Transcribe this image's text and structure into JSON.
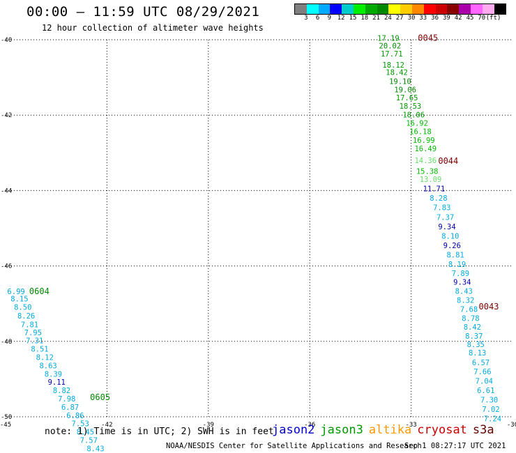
{
  "title": "00:00 – 11:59 UTC 08/29/2021",
  "subtitle": "12 hour collection of altimeter wave heights",
  "colorbar": {
    "colors": [
      "#7f7f7f",
      "#00ffff",
      "#00aaff",
      "#0000ff",
      "#00cccc",
      "#00ee00",
      "#00aa00",
      "#008800",
      "#ffff00",
      "#ffcc00",
      "#ff8800",
      "#ff0000",
      "#cc0000",
      "#880000",
      "#aa00aa",
      "#ff66ff",
      "#ffaaee",
      "#000000"
    ],
    "labels": [
      "3",
      "6",
      "9",
      "12",
      "15",
      "18",
      "21",
      "24",
      "27",
      "30",
      "33",
      "36",
      "39",
      "42",
      "45",
      "70",
      "(ft)"
    ]
  },
  "axes": {
    "lon_ticks": [
      "-45",
      "-42",
      "-39",
      "-36",
      "-33",
      "-30"
    ],
    "lat_ticks": [
      "-40",
      "-42",
      "-44",
      "-46",
      "-48",
      "-50"
    ]
  },
  "tracks": [
    {
      "id": "track-east-top",
      "labels": [
        {
          "text": "0045",
          "color": "#800000",
          "lon": -32.8,
          "lat": -39.95
        },
        {
          "text": "0044",
          "color": "#800000",
          "lon": -32.2,
          "lat": -43.22
        },
        {
          "text": "0043",
          "color": "#800000",
          "lon": -31.0,
          "lat": -47.08
        }
      ],
      "points": [
        {
          "v": "17.19",
          "c": "#009900",
          "lon": -34.0,
          "lat": -39.95
        },
        {
          "v": "20.02",
          "c": "#008800",
          "lon": -33.95,
          "lat": -40.16
        },
        {
          "v": "17.71",
          "c": "#009900",
          "lon": -33.9,
          "lat": -40.37
        },
        {
          "v": "18.12",
          "c": "#009900",
          "lon": -33.85,
          "lat": -40.67
        },
        {
          "v": "18.42",
          "c": "#009900",
          "lon": -33.75,
          "lat": -40.86
        },
        {
          "v": "19.10",
          "c": "#008800",
          "lon": -33.65,
          "lat": -41.1
        },
        {
          "v": "19.06",
          "c": "#008800",
          "lon": -33.5,
          "lat": -41.32
        },
        {
          "v": "17.65",
          "c": "#009900",
          "lon": -33.45,
          "lat": -41.53
        },
        {
          "v": "18.53",
          "c": "#009900",
          "lon": -33.35,
          "lat": -41.76
        },
        {
          "v": "18.06",
          "c": "#009900",
          "lon": -33.25,
          "lat": -41.99
        },
        {
          "v": "16.92",
          "c": "#00bb00",
          "lon": -33.15,
          "lat": -42.21
        },
        {
          "v": "16.18",
          "c": "#00bb00",
          "lon": -33.05,
          "lat": -42.43
        },
        {
          "v": "16.99",
          "c": "#00bb00",
          "lon": -32.95,
          "lat": -42.66
        },
        {
          "v": "16.49",
          "c": "#00bb00",
          "lon": -32.9,
          "lat": -42.88
        },
        {
          "v": "14.36",
          "c": "#66dd66",
          "lon": -32.9,
          "lat": -43.2
        },
        {
          "v": "15.38",
          "c": "#00bb00",
          "lon": -32.85,
          "lat": -43.48
        },
        {
          "v": "13.09",
          "c": "#66dd66",
          "lon": -32.75,
          "lat": -43.7
        },
        {
          "v": "11.71",
          "c": "#0000aa",
          "lon": -32.65,
          "lat": -43.95
        },
        {
          "v": "8.28",
          "c": "#00aadd",
          "lon": -32.45,
          "lat": -44.2
        },
        {
          "v": "7.83",
          "c": "#00aadd",
          "lon": -32.35,
          "lat": -44.45
        },
        {
          "v": "7.37",
          "c": "#00aadd",
          "lon": -32.25,
          "lat": -44.7
        },
        {
          "v": "9.34",
          "c": "#0000aa",
          "lon": -32.2,
          "lat": -44.95
        },
        {
          "v": "8.10",
          "c": "#00aadd",
          "lon": -32.1,
          "lat": -45.2
        },
        {
          "v": "9.26",
          "c": "#0000aa",
          "lon": -32.05,
          "lat": -45.45
        },
        {
          "v": "8.81",
          "c": "#00aadd",
          "lon": -31.95,
          "lat": -45.7
        },
        {
          "v": "8.19",
          "c": "#00aadd",
          "lon": -31.9,
          "lat": -45.95
        },
        {
          "v": "7.89",
          "c": "#00aadd",
          "lon": -31.8,
          "lat": -46.19
        },
        {
          "v": "9.34",
          "c": "#0000aa",
          "lon": -31.75,
          "lat": -46.42
        },
        {
          "v": "8.43",
          "c": "#00aadd",
          "lon": -31.7,
          "lat": -46.66
        },
        {
          "v": "8.32",
          "c": "#00aadd",
          "lon": -31.65,
          "lat": -46.9
        },
        {
          "v": "7.68",
          "c": "#00aadd",
          "lon": -31.55,
          "lat": -47.14
        },
        {
          "v": "8.78",
          "c": "#00aadd",
          "lon": -31.5,
          "lat": -47.38
        },
        {
          "v": "8.42",
          "c": "#00aadd",
          "lon": -31.45,
          "lat": -47.62
        },
        {
          "v": "8.37",
          "c": "#00aadd",
          "lon": -31.4,
          "lat": -47.86
        },
        {
          "v": "8.35",
          "c": "#00aadd",
          "lon": -31.35,
          "lat": -48.08
        },
        {
          "v": "8.13",
          "c": "#00aadd",
          "lon": -31.3,
          "lat": -48.3
        },
        {
          "v": "6.57",
          "c": "#00aadd",
          "lon": -31.2,
          "lat": -48.56
        },
        {
          "v": "7.66",
          "c": "#00aadd",
          "lon": -31.15,
          "lat": -48.8
        },
        {
          "v": "7.04",
          "c": "#00aadd",
          "lon": -31.1,
          "lat": -49.05
        },
        {
          "v": "6.61",
          "c": "#00aadd",
          "lon": -31.05,
          "lat": -49.3
        },
        {
          "v": "7.30",
          "c": "#00aadd",
          "lon": -30.95,
          "lat": -49.55
        },
        {
          "v": "7.02",
          "c": "#00aadd",
          "lon": -30.9,
          "lat": -49.8
        },
        {
          "v": "7.24",
          "c": "#00aadd",
          "lon": -30.85,
          "lat": -50.05
        }
      ]
    },
    {
      "id": "track-west",
      "labels": [
        {
          "text": "0604",
          "color": "#008800",
          "lon": -44.3,
          "lat": -46.67
        },
        {
          "text": "0605",
          "color": "#008800",
          "lon": -42.5,
          "lat": -49.48
        }
      ],
      "points": [
        {
          "v": "6.99",
          "c": "#00aadd",
          "lon": -44.95,
          "lat": -46.67
        },
        {
          "v": "8.15",
          "c": "#00aadd",
          "lon": -44.85,
          "lat": -46.87
        },
        {
          "v": "8.50",
          "c": "#00aadd",
          "lon": -44.75,
          "lat": -47.09
        },
        {
          "v": "8.26",
          "c": "#00aadd",
          "lon": -44.65,
          "lat": -47.32
        },
        {
          "v": "7.81",
          "c": "#00aadd",
          "lon": -44.55,
          "lat": -47.55
        },
        {
          "v": "7.95",
          "c": "#00aadd",
          "lon": -44.45,
          "lat": -47.76
        },
        {
          "v": "7.31",
          "c": "#00aadd",
          "lon": -44.4,
          "lat": -47.98
        },
        {
          "v": "8.51",
          "c": "#00aadd",
          "lon": -44.25,
          "lat": -48.2
        },
        {
          "v": "8.12",
          "c": "#00aadd",
          "lon": -44.1,
          "lat": -48.42
        },
        {
          "v": "8.63",
          "c": "#00aadd",
          "lon": -44.0,
          "lat": -48.64
        },
        {
          "v": "8.39",
          "c": "#00aadd",
          "lon": -43.85,
          "lat": -48.86
        },
        {
          "v": "9.11",
          "c": "#0000aa",
          "lon": -43.75,
          "lat": -49.08
        },
        {
          "v": "8.82",
          "c": "#00aadd",
          "lon": -43.6,
          "lat": -49.3
        },
        {
          "v": "7.98",
          "c": "#00aadd",
          "lon": -43.45,
          "lat": -49.52
        },
        {
          "v": "6.87",
          "c": "#00aadd",
          "lon": -43.35,
          "lat": -49.74
        },
        {
          "v": "6.86",
          "c": "#00aadd",
          "lon": -43.2,
          "lat": -49.96
        },
        {
          "v": "7.53",
          "c": "#00aadd",
          "lon": -43.05,
          "lat": -50.18
        },
        {
          "v": "8.45",
          "c": "#00aadd",
          "lon": -42.9,
          "lat": -50.4
        },
        {
          "v": "7.57",
          "c": "#00aadd",
          "lon": -42.8,
          "lat": -50.62
        },
        {
          "v": "8.43",
          "c": "#00aadd",
          "lon": -42.6,
          "lat": -50.84
        }
      ]
    }
  ],
  "note": "note: 1) Time is in UTC; 2) SWH is in feet",
  "satellites": [
    {
      "name": "jason2",
      "color": "#0000cc"
    },
    {
      "name": "jason3",
      "color": "#009900"
    },
    {
      "name": "altika",
      "color": "#ff9900"
    },
    {
      "name": "cryosat",
      "color": "#cc0000"
    },
    {
      "name": "s3a",
      "color": "#660000"
    }
  ],
  "credit": "NOAA/NESDIS Center for Satellite Applications and Research",
  "generated": "Sep  1 08:27:17 UTC 2021"
}
